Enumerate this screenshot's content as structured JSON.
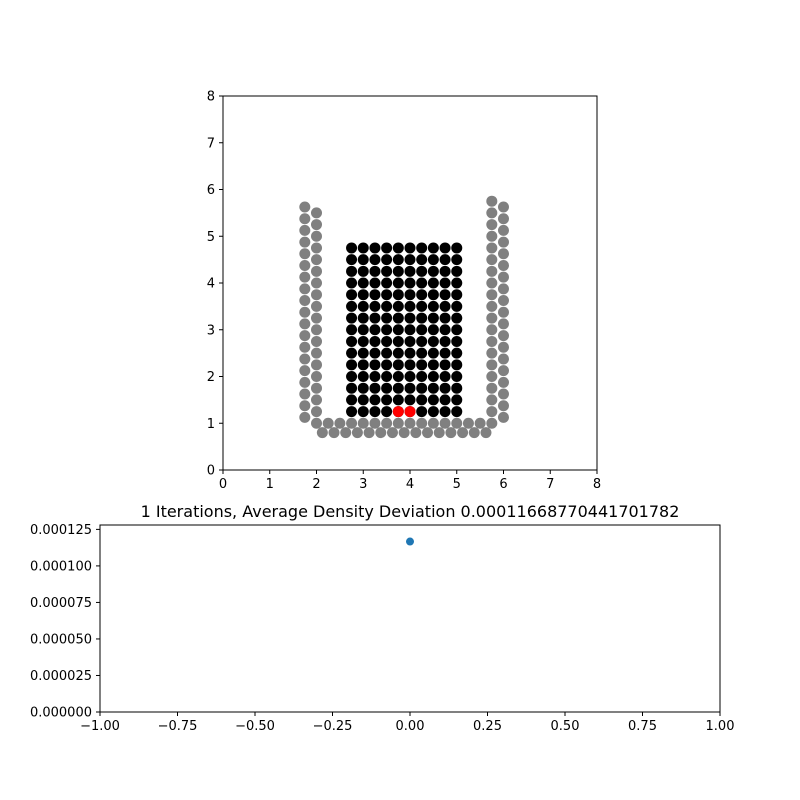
{
  "chart_data": [
    {
      "type": "scatter",
      "title": "",
      "xlabel": "",
      "ylabel": "",
      "xlim": [
        0,
        8
      ],
      "ylim": [
        0,
        8
      ],
      "xticks": [
        "0",
        "1",
        "2",
        "3",
        "4",
        "5",
        "6",
        "7",
        "8"
      ],
      "yticks": [
        "0",
        "1",
        "2",
        "3",
        "4",
        "5",
        "6",
        "7",
        "8"
      ],
      "grid": false,
      "series": [
        {
          "role": "boundary",
          "color": "#808080",
          "groups": [
            {
              "kind": "column",
              "x": 1.75,
              "y_from": 1.125,
              "y_to": 5.625,
              "step": 0.25
            },
            {
              "kind": "column",
              "x": 2.0,
              "y_from": 1.25,
              "y_to": 5.5,
              "step": 0.25
            },
            {
              "kind": "row",
              "y": 0.8,
              "x_from": 2.125,
              "x_to": 5.625,
              "step": 0.25
            },
            {
              "kind": "row",
              "y": 1.0,
              "x_from": 2.0,
              "x_to": 5.75,
              "step": 0.25
            },
            {
              "kind": "column",
              "x": 5.75,
              "y_from": 1.25,
              "y_to": 5.75,
              "step": 0.25
            },
            {
              "kind": "column",
              "x": 6.0,
              "y_from": 1.125,
              "y_to": 5.625,
              "step": 0.25
            }
          ]
        },
        {
          "role": "fluid",
          "color": "#000000",
          "groups": [
            {
              "kind": "grid",
              "x_from": 2.75,
              "x_to": 5.0,
              "x_step": 0.25,
              "y_from": 1.25,
              "y_to": 4.75,
              "y_step": 0.25
            }
          ]
        },
        {
          "role": "highlighted",
          "color": "#ff0000",
          "points": [
            [
              3.75,
              1.25
            ],
            [
              4.0,
              1.25
            ]
          ]
        }
      ]
    },
    {
      "type": "scatter",
      "title": "1 Iterations, Average Density Deviation 0.00011668770441701782",
      "xlabel": "",
      "ylabel": "",
      "xlim": [
        -1.0,
        1.0
      ],
      "ylim": [
        0,
        0.000128
      ],
      "xticks": [
        "−1.00",
        "−0.75",
        "−0.50",
        "−0.25",
        "0.00",
        "0.25",
        "0.50",
        "0.75",
        "1.00"
      ],
      "xtick_values": [
        -1.0,
        -0.75,
        -0.5,
        -0.25,
        0.0,
        0.25,
        0.5,
        0.75,
        1.0
      ],
      "yticks": [
        "0.000000",
        "0.000025",
        "0.000050",
        "0.000075",
        "0.000100",
        "0.000125"
      ],
      "ytick_values": [
        0,
        2.5e-05,
        5e-05,
        7.5e-05,
        0.0001,
        0.000125
      ],
      "grid": false,
      "series": [
        {
          "color": "#1f77b4",
          "x": [
            0
          ],
          "y": [
            0.00011668770441701782
          ]
        }
      ]
    }
  ]
}
